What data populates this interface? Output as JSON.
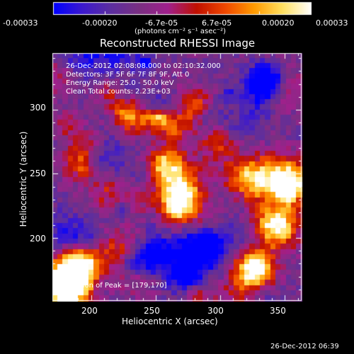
{
  "colorbar": {
    "tick_labels": [
      "-0.00033",
      "-0.00020",
      "-6.7e-05",
      "6.7e-05",
      "0.00020",
      "0.00033"
    ],
    "units": "(photons cm⁻² s⁻¹ asec⁻²)",
    "range": [
      -0.00033,
      0.00033
    ]
  },
  "title": "Reconstructed RHESSI Image",
  "annotations": {
    "time": "26-Dec-2012 02:08:08.000 to 02:10:32.000",
    "detectors": "Detectors: 3F 5F 6F 7F 8F 9F, Att 0",
    "energy": "Energy Range: 25.0 - 50.0 keV",
    "clean": "Clean     Total counts: 2.23E+03",
    "peak": "Position of Peak = [179,170]"
  },
  "axes": {
    "xlabel": "Heliocentric X (arcsec)",
    "ylabel": "Heliocentric Y (arcsec)",
    "xlim": [
      170,
      363
    ],
    "ylim": [
      151,
      344
    ],
    "x_ticks": [
      "200",
      "250",
      "300",
      "350"
    ],
    "y_ticks": [
      "200",
      "250",
      "300"
    ]
  },
  "footer_timestamp": "26-Dec-2012 06:39",
  "colors": {
    "background": "#000000",
    "colormap": [
      "#0000ff",
      "#3c19cf",
      "#5c2ea0",
      "#7a2f82",
      "#a0208c",
      "#c01000",
      "#f04800",
      "#ff9a00",
      "#ffe060",
      "#ffffff"
    ]
  }
}
